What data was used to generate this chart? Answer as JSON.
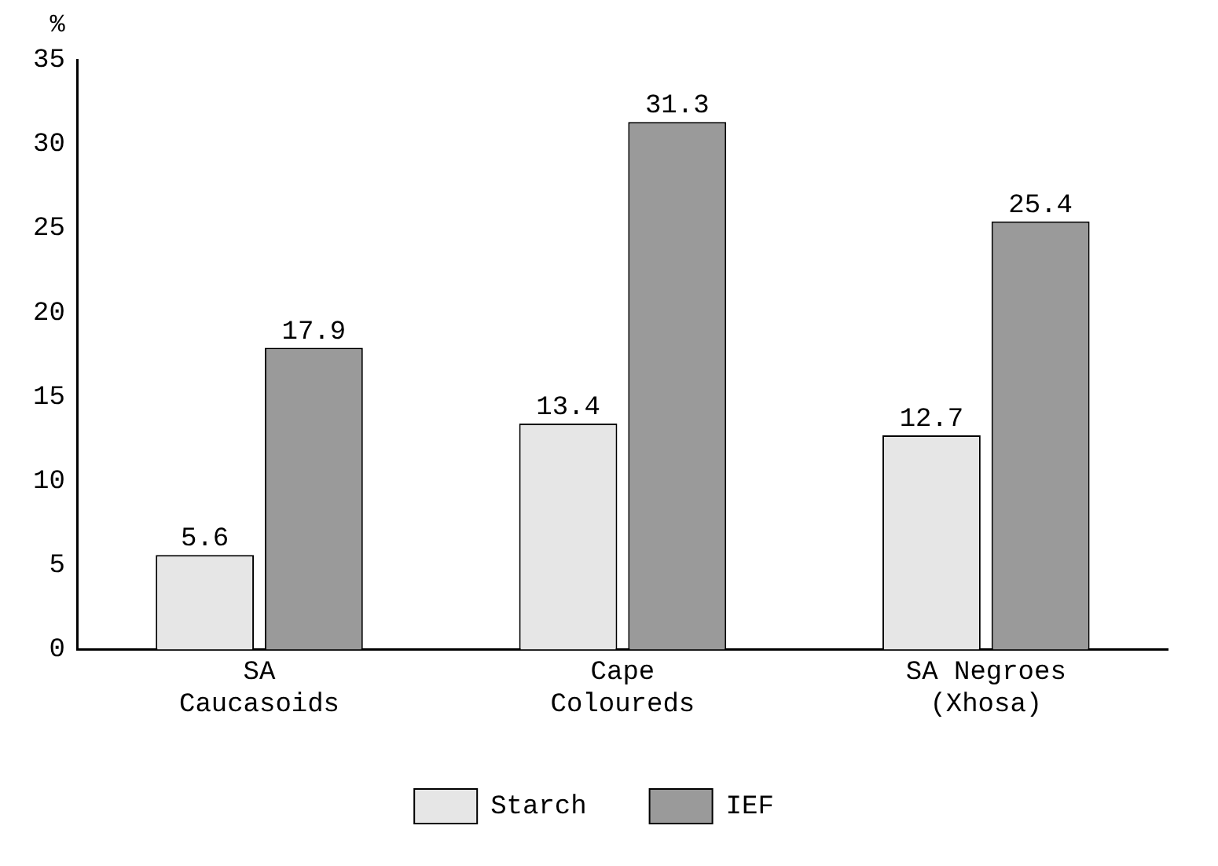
{
  "chart_data": {
    "type": "bar",
    "ylabel": "%",
    "categories": [
      "SA\nCaucasoids",
      "Cape\nColoureds",
      "SA Negroes\n(Xhosa)"
    ],
    "series": [
      {
        "name": "Starch",
        "color": "#e6e6e6",
        "values": [
          5.6,
          13.4,
          12.7
        ]
      },
      {
        "name": "IEF",
        "color": "#9a9a9a",
        "values": [
          17.9,
          31.3,
          25.4
        ]
      }
    ],
    "ylim": [
      0,
      35
    ],
    "yticks": [
      0,
      5,
      10,
      15,
      20,
      25,
      30,
      35
    ],
    "grid": false,
    "legend": "bottom",
    "data_labels": true
  }
}
